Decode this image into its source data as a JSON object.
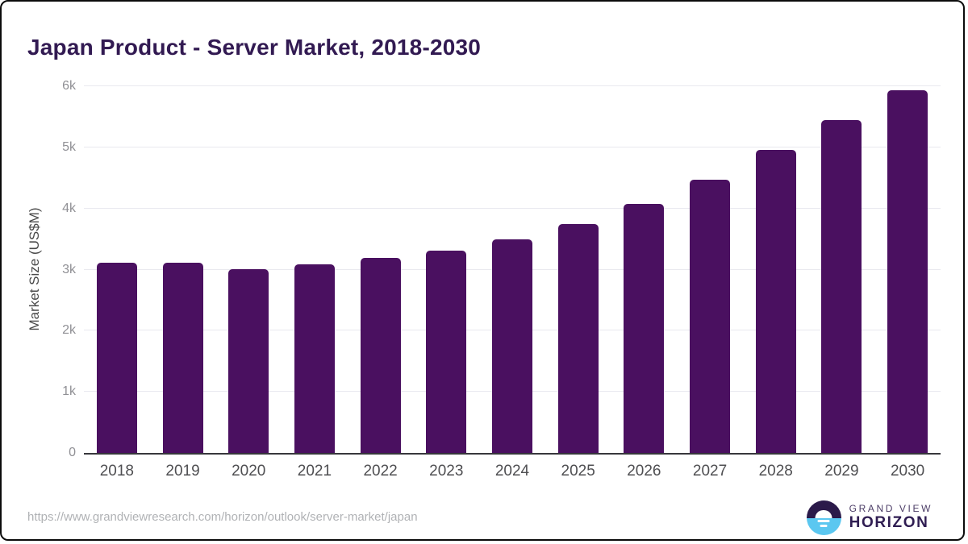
{
  "chart_data": {
    "type": "bar",
    "title": "Japan Product - Server Market, 2018-2030",
    "xlabel": "",
    "ylabel": "Market Size (US$M)",
    "unit": "US$M",
    "categories": [
      "2018",
      "2019",
      "2020",
      "2021",
      "2022",
      "2023",
      "2024",
      "2025",
      "2026",
      "2027",
      "2028",
      "2029",
      "2030"
    ],
    "values": [
      3110,
      3115,
      3010,
      3080,
      3190,
      3310,
      3500,
      3750,
      4070,
      4475,
      4955,
      5445,
      5930
    ],
    "ylim": [
      0,
      6000
    ],
    "ytick_values": [
      0,
      1000,
      2000,
      3000,
      4000,
      5000,
      6000
    ],
    "ytick_labels": [
      "0",
      "1k",
      "2k",
      "3k",
      "4k",
      "5k",
      "6k"
    ],
    "grid": "horizontal",
    "legend": "none"
  },
  "footer": {
    "source_url": "https://www.grandviewresearch.com/horizon/outlook/server-market/japan",
    "logo_text_top": "GRAND VIEW",
    "logo_text_bottom": "HORIZON",
    "logo_icon": "horizon-sunrise-icon"
  },
  "colors": {
    "bar": "#4a1060",
    "title_text": "#321a52",
    "logo_dark_half": "#2b1a4a",
    "logo_blue_half": "#5bc7f0"
  }
}
